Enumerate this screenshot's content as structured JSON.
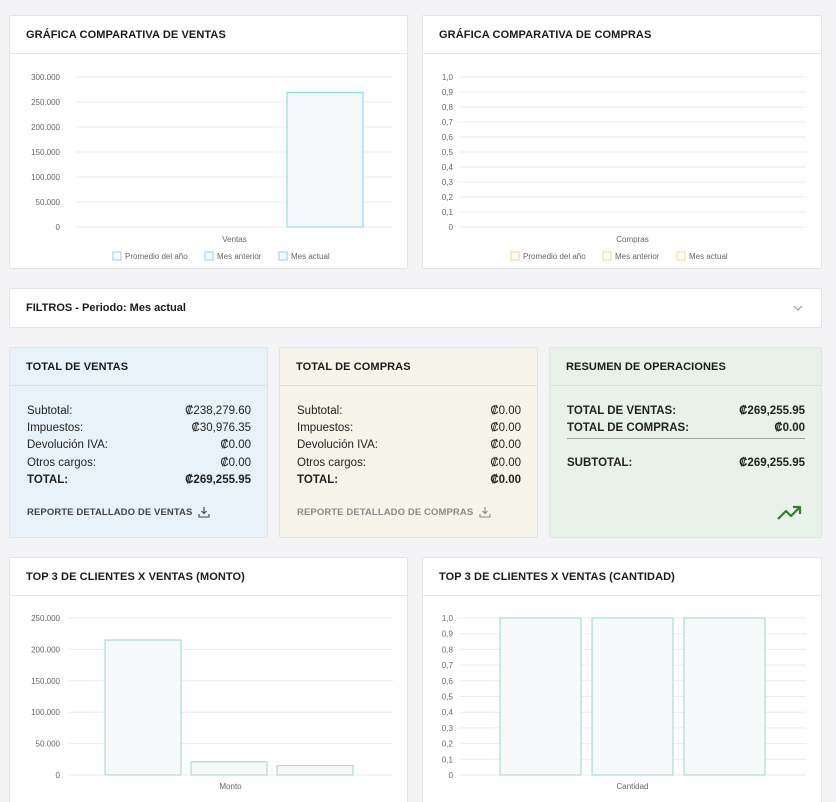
{
  "charts": {
    "ventas": {
      "title": "GRÁFICA COMPARATIVA DE VENTAS",
      "chart_data": {
        "type": "bar",
        "categories": [
          "Ventas"
        ],
        "series": [
          {
            "name": "Promedio del año",
            "values": [
              0
            ]
          },
          {
            "name": "Mes anterior",
            "values": [
              0
            ]
          },
          {
            "name": "Mes actual",
            "values": [
              269255.95
            ]
          }
        ],
        "ylim": [
          0,
          300000
        ],
        "yticks": [
          "300.000",
          "250.000",
          "200.000",
          "150.000",
          "100.000",
          "50.000",
          "0"
        ],
        "legend_position": "bottom",
        "grid": true
      },
      "legend": [
        "Promedio del año",
        "Mes anterior",
        "Mes actual"
      ],
      "xlabel": "Ventas",
      "color": "#7ed3ee"
    },
    "compras": {
      "title": "GRÁFICA COMPARATIVA DE COMPRAS",
      "chart_data": {
        "type": "bar",
        "categories": [
          "Compras"
        ],
        "series": [
          {
            "name": "Promedio del año",
            "values": [
              0
            ]
          },
          {
            "name": "Mes anterior",
            "values": [
              0
            ]
          },
          {
            "name": "Mes actual",
            "values": [
              0
            ]
          }
        ],
        "ylim": [
          0,
          1
        ],
        "yticks": [
          "1,0",
          "0,9",
          "0,8",
          "0,7",
          "0,6",
          "0,5",
          "0,4",
          "0,3",
          "0,2",
          "0,1",
          "0"
        ],
        "legend_position": "bottom",
        "grid": true
      },
      "legend": [
        "Promedio del año",
        "Mes anterior",
        "Mes actual"
      ],
      "xlabel": "Compras",
      "color": "#f3d58a"
    },
    "top_monto": {
      "title": "TOP 3 DE CLIENTES X VENTAS (MONTO)",
      "chart_data": {
        "type": "bar",
        "categories": [
          "Monto"
        ],
        "series": [
          {
            "values": [
              215000
            ]
          },
          {
            "values": [
              21000
            ]
          },
          {
            "values": [
              15000
            ]
          }
        ],
        "ylim": [
          0,
          250000
        ],
        "yticks": [
          "250.000",
          "200.000",
          "150.000",
          "100.000",
          "50.000",
          "0"
        ],
        "grid": true
      },
      "xlabel": "Monto",
      "color": "#9fd9c4"
    },
    "top_cantidad": {
      "title": "TOP 3 DE CLIENTES X VENTAS (CANTIDAD)",
      "chart_data": {
        "type": "bar",
        "categories": [
          "Cantidad"
        ],
        "series": [
          {
            "values": [
              1
            ]
          },
          {
            "values": [
              1
            ]
          },
          {
            "values": [
              1
            ]
          }
        ],
        "ylim": [
          0,
          1
        ],
        "yticks": [
          "1,0",
          "0,9",
          "0,8",
          "0,7",
          "0,6",
          "0,5",
          "0,4",
          "0,3",
          "0,2",
          "0,1",
          "0"
        ],
        "grid": true
      },
      "xlabel": "Cantidad",
      "color": "#9fd9c4"
    }
  },
  "filters": {
    "title": "FILTROS - Periodo: Mes actual",
    "icon": "chevron-down-icon"
  },
  "totals": {
    "ventas": {
      "title": "TOTAL DE VENTAS",
      "bg": "#eaf2f9",
      "rows": [
        {
          "label": "Subtotal:",
          "value": "₡238,279.60"
        },
        {
          "label": "Impuestos:",
          "value": "₡30,976.35"
        },
        {
          "label": "Devolución IVA:",
          "value": "₡0.00"
        },
        {
          "label": "Otros cargos:",
          "value": "₡0.00"
        },
        {
          "label": "TOTAL:",
          "value": "₡269,255.95"
        }
      ],
      "report_label": "REPORTE DETALLADO DE VENTAS",
      "report_icon": "download-icon"
    },
    "compras": {
      "title": "TOTAL DE COMPRAS",
      "bg": "#f7f4ec",
      "rows": [
        {
          "label": "Subtotal:",
          "value": "₡0.00"
        },
        {
          "label": "Impuestos:",
          "value": "₡0.00"
        },
        {
          "label": "Devolución IVA:",
          "value": "₡0.00"
        },
        {
          "label": "Otros cargos:",
          "value": "₡0.00"
        },
        {
          "label": "TOTAL:",
          "value": "₡0.00"
        }
      ],
      "report_label": "REPORTE DETALLADO DE COMPRAS",
      "report_icon": "download-icon"
    },
    "resumen": {
      "title": "RESUMEN DE OPERACIONES",
      "bg": "#e8f2e8",
      "rows": [
        {
          "label": "TOTAL DE VENTAS:",
          "value": "₡269,255.95"
        },
        {
          "label": "TOTAL DE COMPRAS:",
          "value": "₡0.00"
        },
        {
          "label": "SUBTOTAL:",
          "value": "₡269,255.95"
        }
      ],
      "icon": "trending-up-icon",
      "icon_color": "#2e7d32"
    }
  }
}
